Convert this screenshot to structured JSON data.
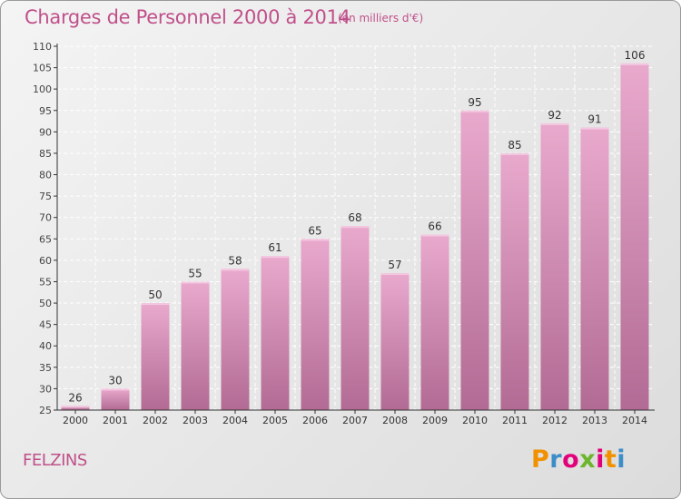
{
  "header": {
    "title": "Charges de Personnel 2000 à 2014",
    "subtitle": "(en milliers d'€)"
  },
  "footer": {
    "commune": "FELZINS",
    "brand": "Proxiti",
    "brand_colors": [
      "#f29100",
      "#3c8dc8",
      "#e2007a",
      "#6cb52d",
      "#e2007a",
      "#f29100",
      "#3c8dc8"
    ]
  },
  "colors": {
    "bar_light": "#e9a9cd",
    "bar_dark": "#b26b94",
    "text": "#c0508a",
    "axis": "#333333",
    "grid": "#ffffff"
  },
  "chart_data": {
    "type": "bar",
    "title": "Charges de Personnel 2000 à 2014",
    "subtitle": "(en milliers d'€)",
    "xlabel": "",
    "ylabel": "",
    "categories": [
      "2000",
      "2001",
      "2002",
      "2003",
      "2004",
      "2005",
      "2006",
      "2007",
      "2008",
      "2009",
      "2010",
      "2011",
      "2012",
      "2013",
      "2014"
    ],
    "values": [
      26,
      30,
      50,
      55,
      58,
      61,
      65,
      68,
      57,
      66,
      95,
      85,
      92,
      91,
      106
    ],
    "ylim": [
      25,
      110
    ],
    "yticks": [
      25,
      30,
      35,
      40,
      45,
      50,
      55,
      60,
      65,
      70,
      75,
      80,
      85,
      90,
      95,
      100,
      105,
      110
    ],
    "grid": true,
    "data_labels": true
  }
}
